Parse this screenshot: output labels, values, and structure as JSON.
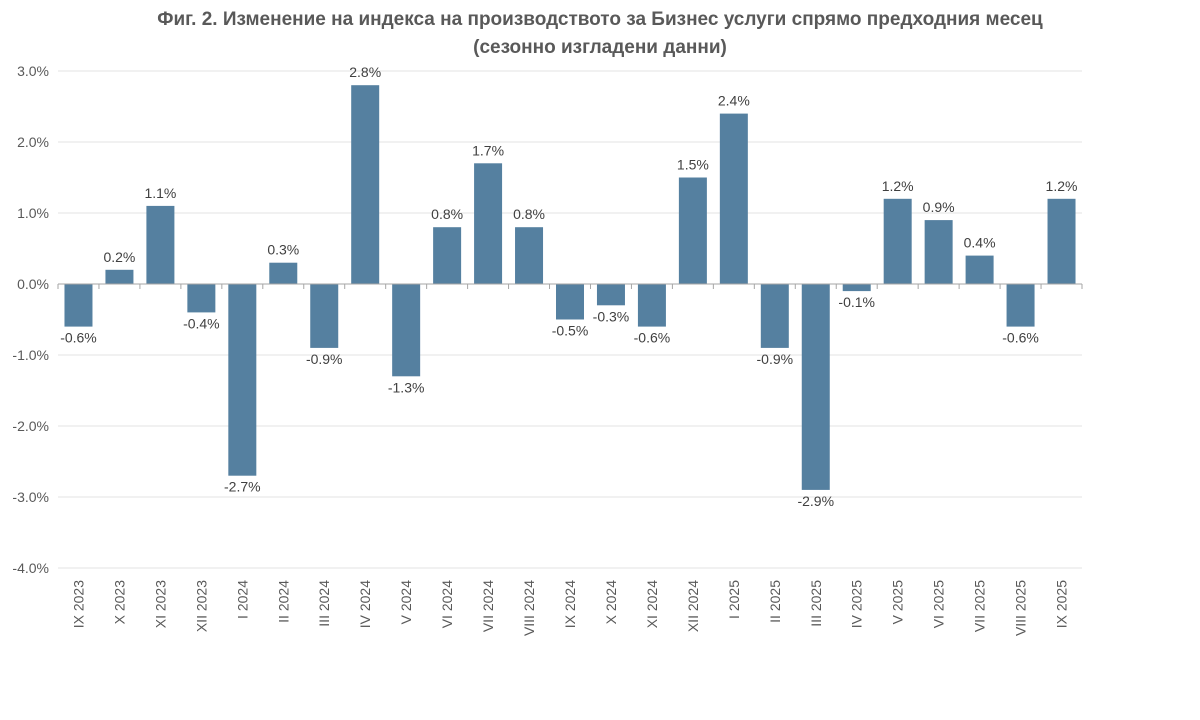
{
  "chart_data": {
    "type": "bar",
    "title_line1": "Фиг. 2. Изменение на индекса на производството за Бизнес услуги спрямо предходния месец",
    "title_line2": "(сезонно изгладени данни)",
    "categories": [
      "IX 2023",
      "X 2023",
      "XI 2023",
      "XII 2023",
      "I 2024",
      "II 2024",
      "III 2024",
      "IV 2024",
      "V 2024",
      "VI 2024",
      "VII 2024",
      "VIII 2024",
      "IX 2024",
      "X 2024",
      "XI 2024",
      "XII 2024",
      "I 2025",
      "II 2025",
      "III 2025",
      "IV 2025",
      "V 2025",
      "VI 2025",
      "VII 2025",
      "VIII 2025",
      "IX 2025"
    ],
    "values": [
      -0.6,
      0.2,
      1.1,
      -0.4,
      -2.7,
      0.3,
      -0.9,
      2.8,
      -1.3,
      0.8,
      1.7,
      0.8,
      -0.5,
      -0.3,
      -0.6,
      1.5,
      2.4,
      -0.9,
      -2.9,
      -0.1,
      1.2,
      0.9,
      0.4,
      -0.6,
      1.2
    ],
    "value_labels": [
      "-0.6%",
      "0.2%",
      "1.1%",
      "-0.4%",
      "-2.7%",
      "0.3%",
      "-0.9%",
      "2.8%",
      "-1.3%",
      "0.8%",
      "1.7%",
      "0.8%",
      "-0.5%",
      "-0.3%",
      "-0.6%",
      "1.5%",
      "2.4%",
      "-0.9%",
      "-2.9%",
      "-0.1%",
      "1.2%",
      "0.9%",
      "0.4%",
      "-0.6%",
      "1.2%"
    ],
    "ylim": [
      -4.0,
      3.0
    ],
    "yticks": [
      3.0,
      2.0,
      1.0,
      0.0,
      -1.0,
      -2.0,
      -3.0,
      -4.0
    ],
    "ytick_labels": [
      "3.0%",
      "2.0%",
      "1.0%",
      "0.0%",
      "-1.0%",
      "-2.0%",
      "-3.0%",
      "-4.0%"
    ],
    "xlabel": "",
    "ylabel": "",
    "grid": true,
    "bar_color": "#5580A0",
    "grid_color": "#e3e3e3",
    "axis_color": "#a6a6a6"
  }
}
